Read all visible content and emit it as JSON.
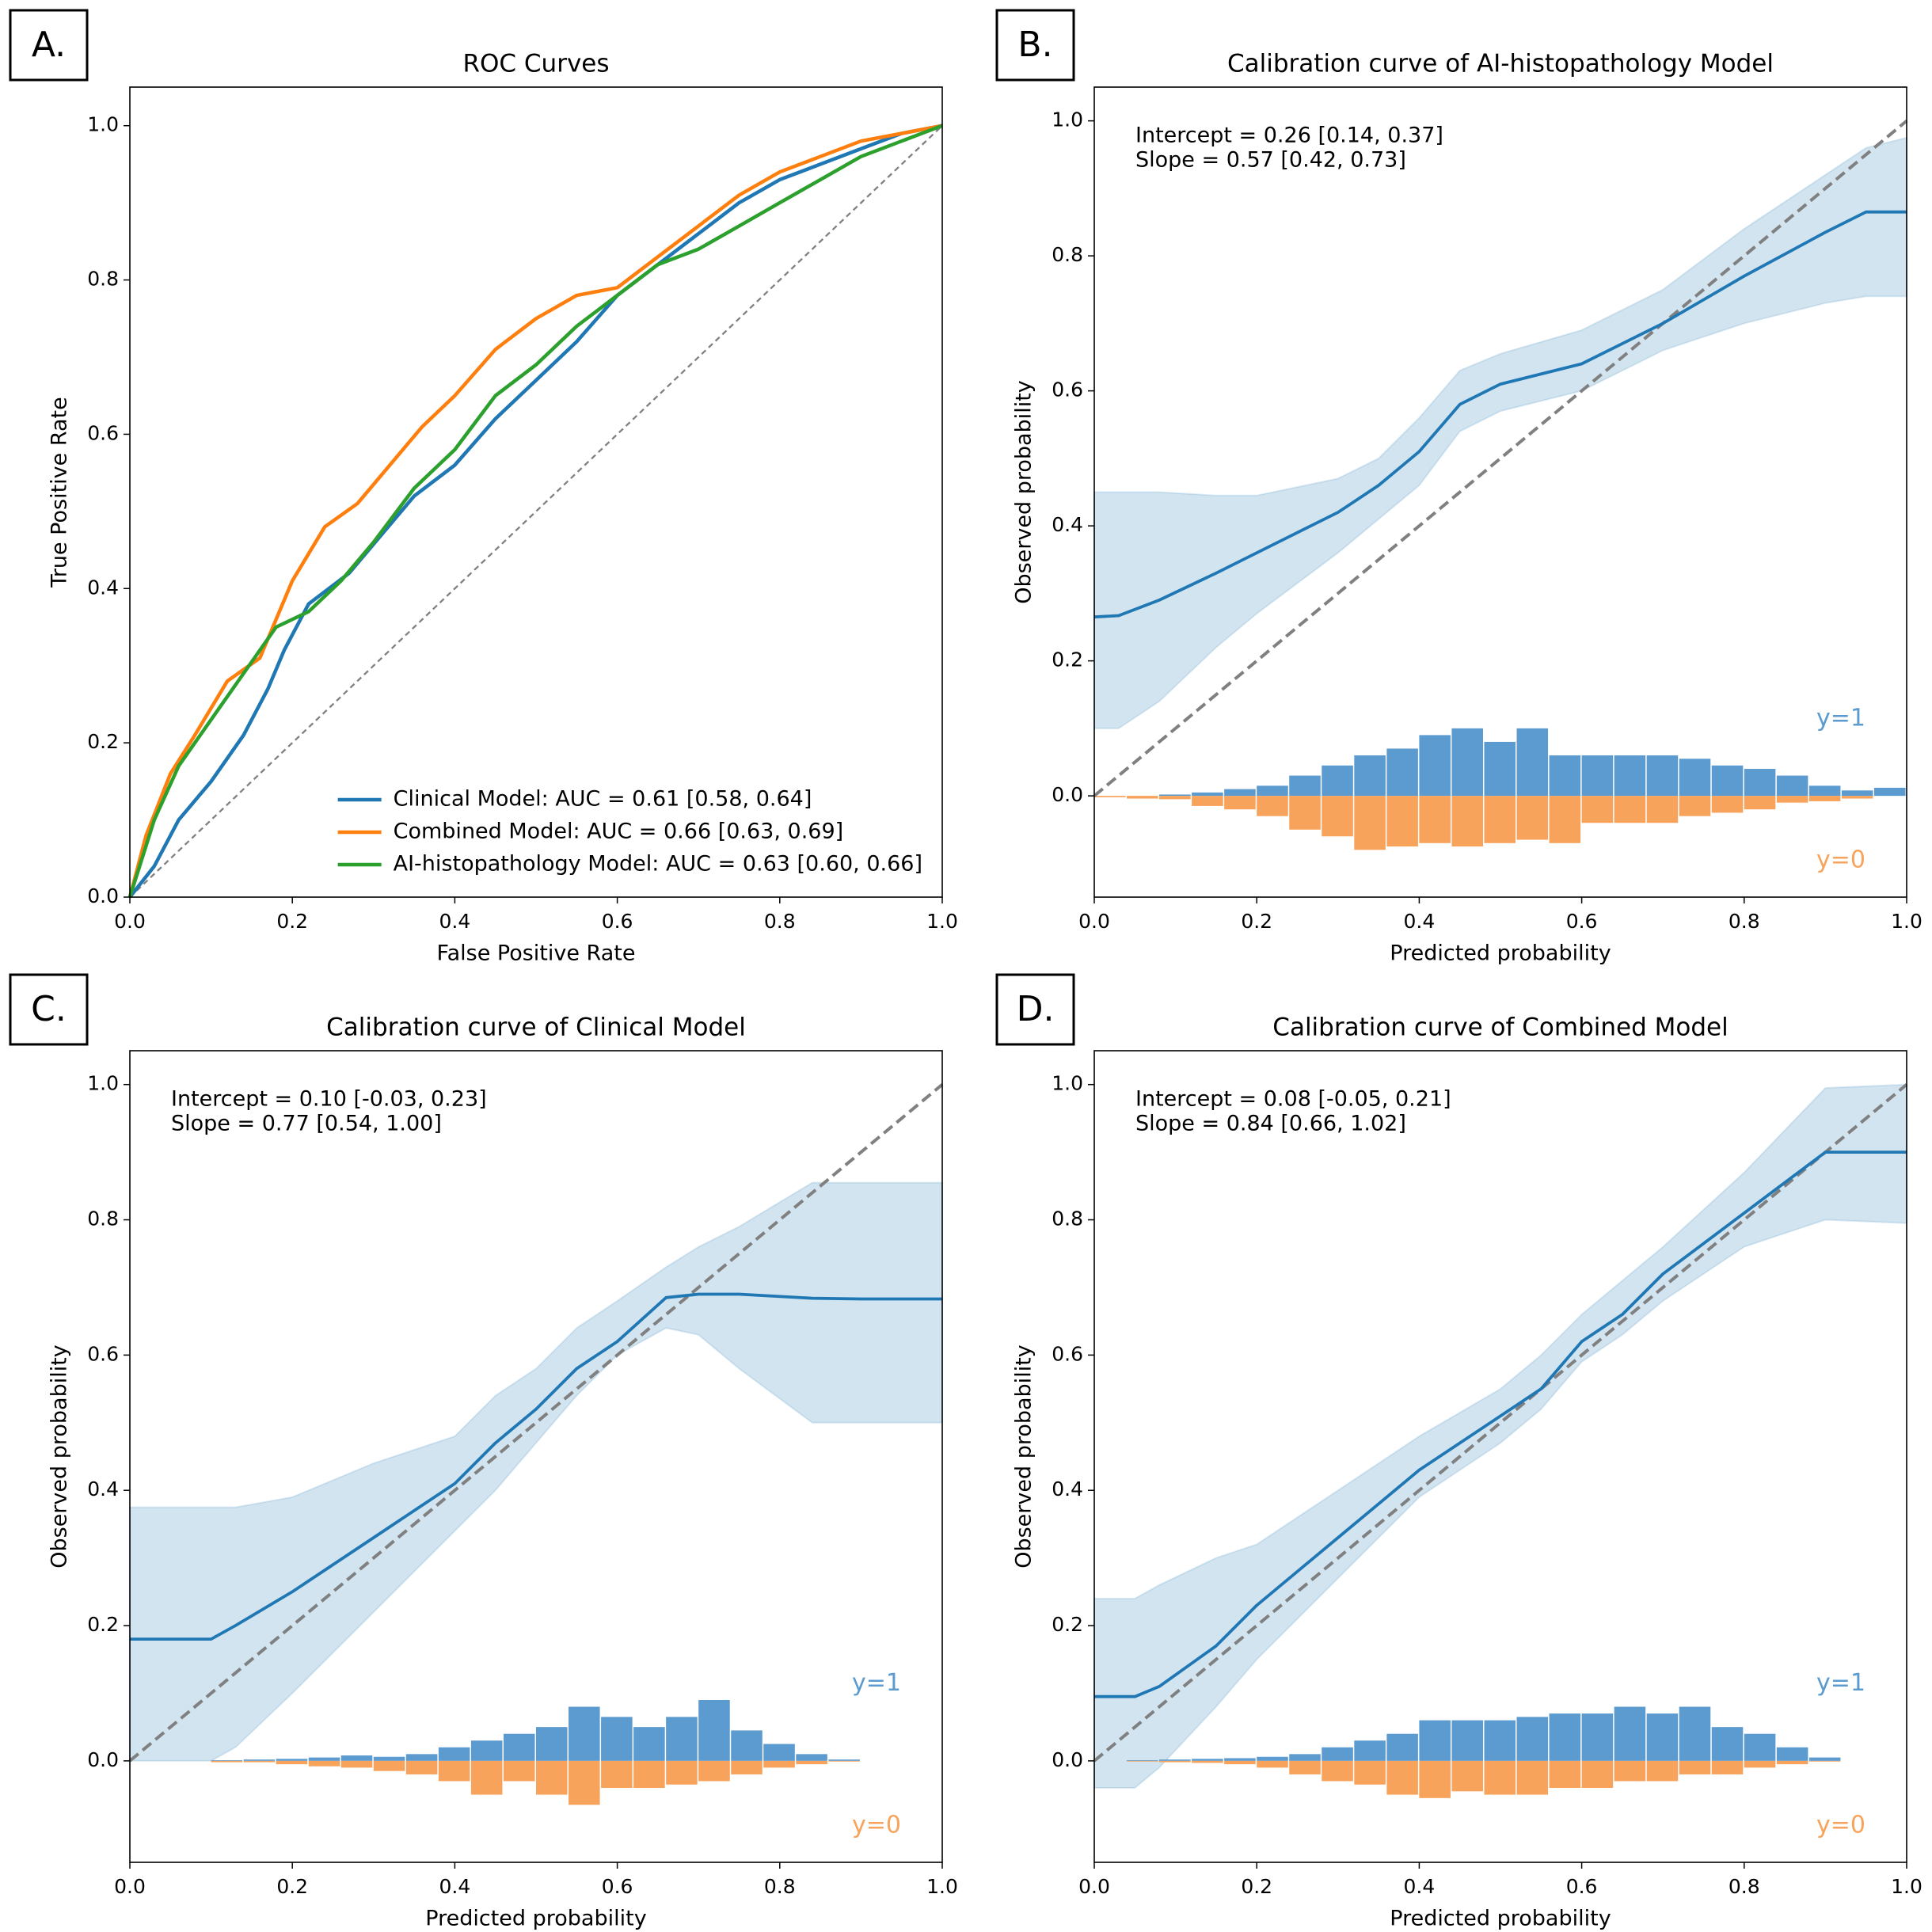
{
  "chart_data": [
    {
      "panel_label": "A.",
      "type": "roc",
      "title": "ROC Curves",
      "xlabel": "False Positive Rate",
      "ylabel": "True Positive Rate",
      "xlim": [
        0,
        1
      ],
      "ylim": [
        0,
        1.05
      ],
      "xticks": [
        {
          "value": 0,
          "label": "0.0"
        },
        0.2,
        0.4,
        0.6,
        0.8,
        {
          "value": 1,
          "label": "1.0"
        }
      ],
      "yticks": [
        {
          "value": 0,
          "label": "0.0"
        },
        0.2,
        0.4,
        0.6,
        0.8,
        {
          "value": 1,
          "label": "1.0"
        }
      ],
      "legend": "lower right",
      "series": [
        {
          "name": "Clinical Model: AUC = 0.61 [0.58, 0.64]",
          "color": "#1f77b4",
          "x": [
            0,
            0.03,
            0.06,
            0.1,
            0.14,
            0.17,
            0.19,
            0.22,
            0.27,
            0.31,
            0.35,
            0.4,
            0.45,
            0.5,
            0.55,
            0.6,
            0.65,
            0.7,
            0.75,
            0.8,
            0.85,
            0.9,
            0.95,
            1
          ],
          "y": [
            0,
            0.04,
            0.1,
            0.15,
            0.21,
            0.27,
            0.32,
            0.38,
            0.42,
            0.47,
            0.52,
            0.56,
            0.62,
            0.67,
            0.72,
            0.78,
            0.82,
            0.86,
            0.9,
            0.93,
            0.95,
            0.97,
            0.99,
            1
          ]
        },
        {
          "name": "Combined Model: AUC = 0.66 [0.63, 0.69]",
          "color": "#ff7f0e",
          "x": [
            0,
            0.02,
            0.05,
            0.08,
            0.12,
            0.16,
            0.2,
            0.24,
            0.28,
            0.32,
            0.36,
            0.4,
            0.45,
            0.5,
            0.55,
            0.6,
            0.65,
            0.7,
            0.75,
            0.8,
            0.85,
            0.9,
            0.95,
            1
          ],
          "y": [
            0,
            0.08,
            0.16,
            0.21,
            0.28,
            0.31,
            0.41,
            0.48,
            0.51,
            0.56,
            0.61,
            0.65,
            0.71,
            0.75,
            0.78,
            0.79,
            0.83,
            0.87,
            0.91,
            0.94,
            0.96,
            0.98,
            0.99,
            1
          ]
        },
        {
          "name": "AI-histopathology Model: AUC = 0.63 [0.60, 0.66]",
          "color": "#2ca02c",
          "x": [
            0,
            0.03,
            0.06,
            0.1,
            0.14,
            0.18,
            0.22,
            0.26,
            0.3,
            0.35,
            0.4,
            0.45,
            0.5,
            0.55,
            0.6,
            0.65,
            0.7,
            0.75,
            0.8,
            0.85,
            0.9,
            0.95,
            1
          ],
          "y": [
            0,
            0.1,
            0.17,
            0.23,
            0.29,
            0.35,
            0.37,
            0.41,
            0.46,
            0.53,
            0.58,
            0.65,
            0.69,
            0.74,
            0.78,
            0.82,
            0.84,
            0.87,
            0.9,
            0.93,
            0.96,
            0.98,
            1
          ]
        }
      ]
    },
    {
      "panel_label": "B.",
      "type": "calibration",
      "title": "Calibration curve of AI-histopathology Model",
      "xlabel": "Predicted probability",
      "ylabel": "Observed probability",
      "annotations": [
        "Intercept = 0.26 [0.14, 0.37]",
        "Slope = 0.57 [0.42, 0.73]"
      ],
      "xlim": [
        0,
        1
      ],
      "ylim": [
        -0.15,
        1.05
      ],
      "xticks": [
        {
          "value": 0,
          "label": "0.0"
        },
        0.2,
        0.4,
        0.6,
        0.8,
        {
          "value": 1,
          "label": "1.0"
        }
      ],
      "yticks": [
        {
          "value": 0,
          "label": "0.0"
        },
        0.2,
        0.4,
        0.6,
        0.8,
        {
          "value": 1,
          "label": "1.0"
        }
      ],
      "curve": {
        "color": "#1f77b4",
        "x": [
          0,
          0.03,
          0.08,
          0.15,
          0.2,
          0.3,
          0.35,
          0.4,
          0.45,
          0.5,
          0.6,
          0.7,
          0.8,
          0.9,
          0.95,
          1
        ],
        "y": [
          0.265,
          0.267,
          0.29,
          0.33,
          0.36,
          0.42,
          0.46,
          0.51,
          0.58,
          0.61,
          0.64,
          0.7,
          0.77,
          0.835,
          0.865,
          0.865
        ],
        "lower": [
          0.1,
          0.1,
          0.14,
          0.22,
          0.27,
          0.36,
          0.41,
          0.46,
          0.54,
          0.57,
          0.6,
          0.66,
          0.7,
          0.73,
          0.74,
          0.74
        ],
        "upper": [
          0.45,
          0.45,
          0.45,
          0.445,
          0.445,
          0.47,
          0.5,
          0.56,
          0.63,
          0.655,
          0.69,
          0.75,
          0.84,
          0.92,
          0.96,
          0.975
        ]
      },
      "histogram": {
        "bins": [
          0,
          0.04,
          0.08,
          0.12,
          0.16,
          0.2,
          0.24,
          0.28,
          0.32,
          0.36,
          0.4,
          0.44,
          0.48,
          0.52,
          0.56,
          0.6,
          0.64,
          0.68,
          0.72,
          0.76,
          0.8,
          0.84,
          0.88,
          0.92,
          0.96,
          1
        ],
        "series": [
          {
            "name": "y=1",
            "color": "#5b9bd0",
            "values": [
              0,
              0,
              0.002,
              0.005,
              0.01,
              0.015,
              0.03,
              0.045,
              0.06,
              0.07,
              0.09,
              0.1,
              0.08,
              0.1,
              0.06,
              0.06,
              0.06,
              0.06,
              0.055,
              0.045,
              0.04,
              0.03,
              0.015,
              0.008,
              0.012
            ]
          },
          {
            "name": "y=0",
            "color": "#f7a35c",
            "values": [
              -0.002,
              -0.004,
              -0.005,
              -0.015,
              -0.02,
              -0.03,
              -0.05,
              -0.06,
              -0.08,
              -0.075,
              -0.07,
              -0.075,
              -0.07,
              -0.065,
              -0.07,
              -0.04,
              -0.04,
              -0.04,
              -0.03,
              -0.025,
              -0.02,
              -0.01,
              -0.008,
              -0.004,
              0
            ]
          }
        ]
      }
    },
    {
      "panel_label": "C.",
      "type": "calibration",
      "title": "Calibration curve of Clinical Model",
      "xlabel": "Predicted probability",
      "ylabel": "Observed probability",
      "annotations": [
        "Intercept = 0.10 [-0.03, 0.23]",
        "Slope = 0.77 [0.54, 1.00]"
      ],
      "xlim": [
        0,
        1
      ],
      "ylim": [
        -0.15,
        1.05
      ],
      "xticks": [
        {
          "value": 0,
          "label": "0.0"
        },
        0.2,
        0.4,
        0.6,
        0.8,
        {
          "value": 1,
          "label": "1.0"
        }
      ],
      "yticks": [
        {
          "value": 0,
          "label": "0.0"
        },
        0.2,
        0.4,
        0.6,
        0.8,
        {
          "value": 1,
          "label": "1.0"
        }
      ],
      "curve": {
        "color": "#1f77b4",
        "x": [
          0,
          0.1,
          0.13,
          0.2,
          0.3,
          0.35,
          0.4,
          0.45,
          0.5,
          0.55,
          0.6,
          0.66,
          0.7,
          0.75,
          0.84,
          0.9,
          1
        ],
        "y": [
          0.18,
          0.18,
          0.2,
          0.25,
          0.33,
          0.37,
          0.41,
          0.47,
          0.52,
          0.58,
          0.62,
          0.685,
          0.69,
          0.69,
          0.684,
          0.683,
          0.683
        ],
        "lower": [
          0,
          0,
          0.02,
          0.1,
          0.22,
          0.28,
          0.34,
          0.4,
          0.47,
          0.54,
          0.6,
          0.64,
          0.63,
          0.58,
          0.5,
          0.5,
          0.5
        ],
        "upper": [
          0.375,
          0.375,
          0.375,
          0.39,
          0.44,
          0.46,
          0.48,
          0.54,
          0.58,
          0.64,
          0.68,
          0.73,
          0.76,
          0.79,
          0.855,
          0.855,
          0.855
        ]
      },
      "histogram": {
        "bins": [
          0.1,
          0.14,
          0.18,
          0.22,
          0.26,
          0.3,
          0.34,
          0.38,
          0.42,
          0.46,
          0.5,
          0.54,
          0.58,
          0.62,
          0.66,
          0.7,
          0.74,
          0.78,
          0.82,
          0.86,
          0.9
        ],
        "series": [
          {
            "name": "y=1",
            "color": "#5b9bd0",
            "values": [
              0.001,
              0.002,
              0.003,
              0.005,
              0.008,
              0.006,
              0.01,
              0.02,
              0.03,
              0.04,
              0.05,
              0.08,
              0.065,
              0.05,
              0.065,
              0.09,
              0.045,
              0.025,
              0.01,
              0.002
            ]
          },
          {
            "name": "y=0",
            "color": "#f7a35c",
            "values": [
              -0.002,
              -0.002,
              -0.005,
              -0.008,
              -0.01,
              -0.015,
              -0.02,
              -0.03,
              -0.05,
              -0.03,
              -0.05,
              -0.065,
              -0.04,
              -0.04,
              -0.035,
              -0.03,
              -0.02,
              -0.01,
              -0.005,
              -0.001
            ]
          }
        ]
      }
    },
    {
      "panel_label": "D.",
      "type": "calibration",
      "title": "Calibration curve of Combined Model",
      "xlabel": "Predicted probability",
      "ylabel": "Observed probability",
      "annotations": [
        "Intercept = 0.08 [-0.05, 0.21]",
        "Slope = 0.84 [0.66, 1.02]"
      ],
      "xlim": [
        0,
        1
      ],
      "ylim": [
        -0.15,
        1.05
      ],
      "xticks": [
        {
          "value": 0,
          "label": "0.0"
        },
        0.2,
        0.4,
        0.6,
        0.8,
        {
          "value": 1,
          "label": "1.0"
        }
      ],
      "yticks": [
        {
          "value": 0,
          "label": "0.0"
        },
        0.2,
        0.4,
        0.6,
        0.8,
        {
          "value": 1,
          "label": "1.0"
        }
      ],
      "curve": {
        "color": "#1f77b4",
        "x": [
          0,
          0.05,
          0.08,
          0.15,
          0.2,
          0.3,
          0.4,
          0.5,
          0.55,
          0.6,
          0.65,
          0.7,
          0.8,
          0.9,
          1
        ],
        "y": [
          0.095,
          0.095,
          0.11,
          0.17,
          0.23,
          0.33,
          0.43,
          0.51,
          0.55,
          0.62,
          0.66,
          0.72,
          0.81,
          0.9,
          0.9
        ],
        "lower": [
          -0.04,
          -0.04,
          -0.01,
          0.08,
          0.15,
          0.27,
          0.39,
          0.47,
          0.52,
          0.59,
          0.63,
          0.68,
          0.76,
          0.8,
          0.795
        ],
        "upper": [
          0.24,
          0.24,
          0.26,
          0.3,
          0.32,
          0.4,
          0.48,
          0.55,
          0.6,
          0.66,
          0.71,
          0.76,
          0.87,
          0.995,
          1
        ]
      },
      "histogram": {
        "bins": [
          0.04,
          0.08,
          0.12,
          0.16,
          0.2,
          0.24,
          0.28,
          0.32,
          0.36,
          0.4,
          0.44,
          0.48,
          0.52,
          0.56,
          0.6,
          0.64,
          0.68,
          0.72,
          0.76,
          0.8,
          0.84,
          0.88,
          0.92
        ],
        "series": [
          {
            "name": "y=1",
            "color": "#5b9bd0",
            "values": [
              0.001,
              0.002,
              0.003,
              0.004,
              0.006,
              0.01,
              0.02,
              0.03,
              0.04,
              0.06,
              0.06,
              0.06,
              0.065,
              0.07,
              0.07,
              0.08,
              0.07,
              0.08,
              0.05,
              0.04,
              0.02,
              0.005
            ]
          },
          {
            "name": "y=0",
            "color": "#f7a35c",
            "values": [
              -0.001,
              -0.002,
              -0.003,
              -0.005,
              -0.01,
              -0.02,
              -0.03,
              -0.035,
              -0.05,
              -0.055,
              -0.045,
              -0.05,
              -0.05,
              -0.04,
              -0.04,
              -0.03,
              -0.03,
              -0.02,
              -0.02,
              -0.01,
              -0.005,
              -0.001
            ]
          }
        ]
      }
    }
  ]
}
